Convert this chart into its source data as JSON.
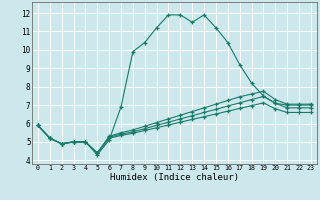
{
  "xlabel": "Humidex (Indice chaleur)",
  "bg_color": "#cce8ec",
  "line_color": "#1a7a6a",
  "grid_color": "#ffffff",
  "xlim": [
    -0.5,
    23.5
  ],
  "ylim": [
    3.8,
    12.6
  ],
  "xticks": [
    0,
    1,
    2,
    3,
    4,
    5,
    6,
    7,
    8,
    9,
    10,
    11,
    12,
    13,
    14,
    15,
    16,
    17,
    18,
    19,
    20,
    21,
    22,
    23
  ],
  "yticks": [
    4,
    5,
    6,
    7,
    8,
    9,
    10,
    11,
    12
  ],
  "x": [
    0,
    1,
    2,
    3,
    4,
    5,
    6,
    7,
    8,
    9,
    10,
    11,
    12,
    13,
    14,
    15,
    16,
    17,
    18,
    19,
    20,
    21,
    22,
    23
  ],
  "lines": [
    [
      5.9,
      5.2,
      4.9,
      5.0,
      5.0,
      4.3,
      5.1,
      6.9,
      9.9,
      10.4,
      11.2,
      11.9,
      11.9,
      11.5,
      11.9,
      11.2,
      10.4,
      9.2,
      8.2,
      7.5,
      7.1,
      7.0,
      7.0,
      7.0
    ],
    [
      5.9,
      5.2,
      4.9,
      5.0,
      5.0,
      4.4,
      5.3,
      5.5,
      5.65,
      5.85,
      6.05,
      6.25,
      6.45,
      6.65,
      6.85,
      7.05,
      7.25,
      7.45,
      7.6,
      7.75,
      7.3,
      7.05,
      7.05,
      7.05
    ],
    [
      5.9,
      5.2,
      4.9,
      5.0,
      5.0,
      4.4,
      5.25,
      5.42,
      5.55,
      5.72,
      5.9,
      6.07,
      6.25,
      6.42,
      6.6,
      6.77,
      6.95,
      7.12,
      7.3,
      7.47,
      7.1,
      6.85,
      6.85,
      6.85
    ],
    [
      5.9,
      5.2,
      4.9,
      5.0,
      5.0,
      4.4,
      5.2,
      5.35,
      5.47,
      5.62,
      5.77,
      5.92,
      6.07,
      6.22,
      6.37,
      6.52,
      6.67,
      6.82,
      6.97,
      7.12,
      6.8,
      6.6,
      6.6,
      6.6
    ]
  ]
}
